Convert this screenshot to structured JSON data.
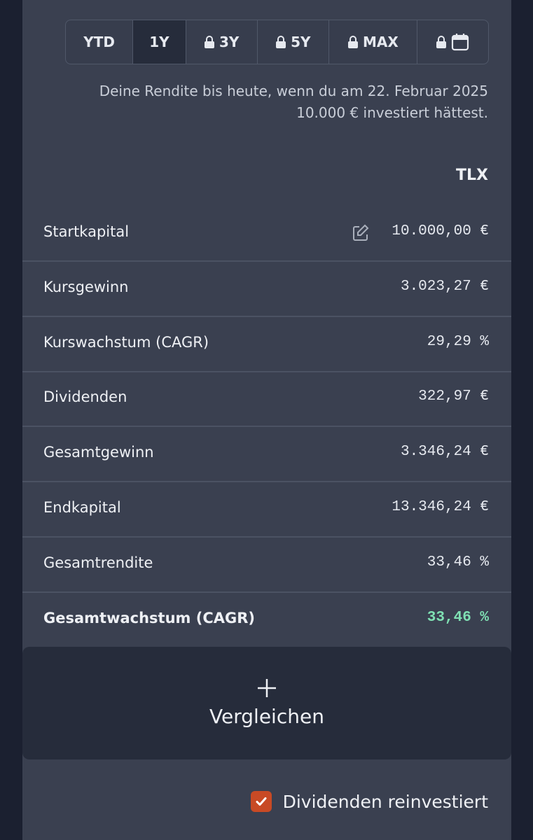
{
  "tabs": [
    "YTD",
    "1Y",
    "3Y",
    "5Y",
    "MAX"
  ],
  "intro": [
    "Deine Rendite bis heute, wenn du am 22. Februar 2025",
    "10.000 € investiert hättest."
  ],
  "column_header": "TLX",
  "rows": [
    {
      "label": "Startkapital",
      "value": "10.000,00 €"
    },
    {
      "label": "Kursgewinn",
      "value": "3.023,27 €"
    },
    {
      "label": "Kurswachstum (CAGR)",
      "value": "29,29 %"
    },
    {
      "label": "Dividenden",
      "value": "322,97 €"
    },
    {
      "label": "Gesamtgewinn",
      "value": "3.346,24 €"
    },
    {
      "label": "Endkapital",
      "value": "13.346,24 €"
    },
    {
      "label": "Gesamtrendite",
      "value": "33,46 %"
    },
    {
      "label": "Gesamtwachstum (CAGR)",
      "value": "33,46 %"
    }
  ],
  "compare_button": "Vergleichen",
  "reinvest_checkbox": "Dividenden reinvestiert"
}
